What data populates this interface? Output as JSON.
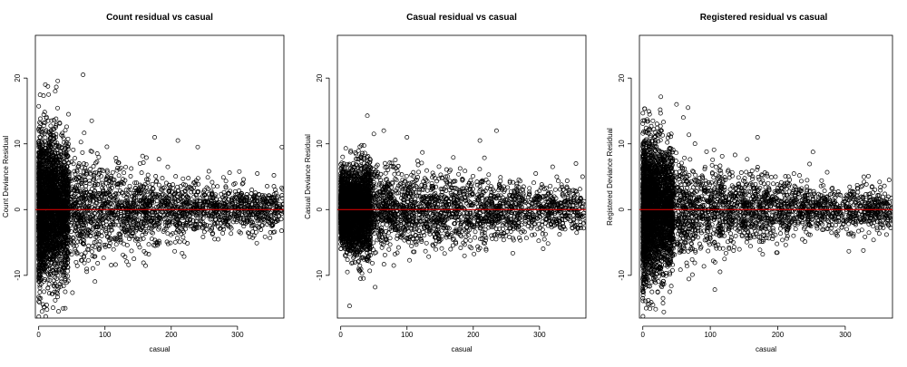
{
  "chart_data": [
    {
      "type": "scatter",
      "title": "Count residual vs casual",
      "xlabel": "casual",
      "ylabel": "Count Deviance Residual",
      "xlim": [
        -5,
        370
      ],
      "ylim": [
        -16.5,
        26.5
      ],
      "xticks": [
        0,
        100,
        200,
        300
      ],
      "yticks": [
        -10,
        0,
        10,
        20
      ],
      "reference_line": {
        "y": 0,
        "color": "#cc0000"
      },
      "grid": false,
      "colors": {
        "points": "#000000",
        "reference": "#cc0000"
      },
      "spread_profile": [
        [
          0,
          15
        ],
        [
          20,
          13
        ],
        [
          50,
          11
        ],
        [
          100,
          8
        ],
        [
          150,
          6.5
        ],
        [
          200,
          5.5
        ],
        [
          260,
          4.5
        ],
        [
          330,
          4
        ],
        [
          370,
          4
        ]
      ],
      "points_outliers": [
        [
          10,
          19
        ],
        [
          15,
          17.5
        ],
        [
          25,
          18
        ],
        [
          45,
          14.5
        ],
        [
          67,
          20.5
        ],
        [
          80,
          13.5
        ],
        [
          175,
          11
        ],
        [
          210,
          10.5
        ],
        [
          240,
          9.5
        ],
        [
          355,
          5.2
        ],
        [
          367,
          9.5
        ],
        [
          5,
          -15.5
        ],
        [
          12,
          -14.5
        ],
        [
          25,
          -13.8
        ],
        [
          40,
          -12.5
        ],
        [
          3,
          -13.5
        ]
      ]
    },
    {
      "type": "scatter",
      "title": "Casual residual vs casual",
      "xlabel": "casual",
      "ylabel": "Casual Deviance Residual",
      "xlim": [
        -5,
        370
      ],
      "ylim": [
        -16.5,
        26.5
      ],
      "xticks": [
        0,
        100,
        200,
        300
      ],
      "yticks": [
        -10,
        0,
        10,
        20
      ],
      "reference_line": {
        "y": 0,
        "color": "#cc0000"
      },
      "grid": false,
      "colors": {
        "points": "#000000",
        "reference": "#cc0000"
      },
      "spread_profile": [
        [
          0,
          6
        ],
        [
          20,
          8
        ],
        [
          50,
          8
        ],
        [
          100,
          7
        ],
        [
          150,
          6.5
        ],
        [
          200,
          6
        ],
        [
          260,
          5
        ],
        [
          330,
          4.5
        ],
        [
          370,
          4
        ]
      ],
      "points_outliers": [
        [
          50,
          11.5
        ],
        [
          65,
          12
        ],
        [
          100,
          11
        ],
        [
          235,
          12
        ],
        [
          210,
          10.5
        ],
        [
          355,
          7
        ],
        [
          365,
          5
        ],
        [
          30,
          -10.5
        ],
        [
          52,
          -11.8
        ],
        [
          10,
          -9.5
        ],
        [
          80,
          -8.5
        ]
      ]
    },
    {
      "type": "scatter",
      "title": "Registered residual vs casual",
      "xlabel": "casual",
      "ylabel": "Registered Deviance Residual",
      "xlim": [
        -5,
        370
      ],
      "ylim": [
        -16.5,
        26.5
      ],
      "xticks": [
        0,
        100,
        200,
        300
      ],
      "yticks": [
        -10,
        0,
        10,
        20
      ],
      "reference_line": {
        "y": 0,
        "color": "#cc0000"
      },
      "grid": false,
      "colors": {
        "points": "#000000",
        "reference": "#cc0000"
      },
      "spread_profile": [
        [
          0,
          14
        ],
        [
          20,
          12
        ],
        [
          50,
          10
        ],
        [
          100,
          8
        ],
        [
          150,
          6.5
        ],
        [
          200,
          5.5
        ],
        [
          260,
          4.5
        ],
        [
          330,
          4
        ],
        [
          370,
          4
        ]
      ],
      "points_outliers": [
        [
          10,
          14.5
        ],
        [
          15,
          13.5
        ],
        [
          50,
          16
        ],
        [
          67,
          15.5
        ],
        [
          60,
          14
        ],
        [
          170,
          11
        ],
        [
          5,
          -15
        ],
        [
          15,
          -14.5
        ],
        [
          30,
          -13.5
        ],
        [
          40,
          -12.5
        ],
        [
          365,
          4.5
        ],
        [
          360,
          -1
        ]
      ]
    }
  ]
}
